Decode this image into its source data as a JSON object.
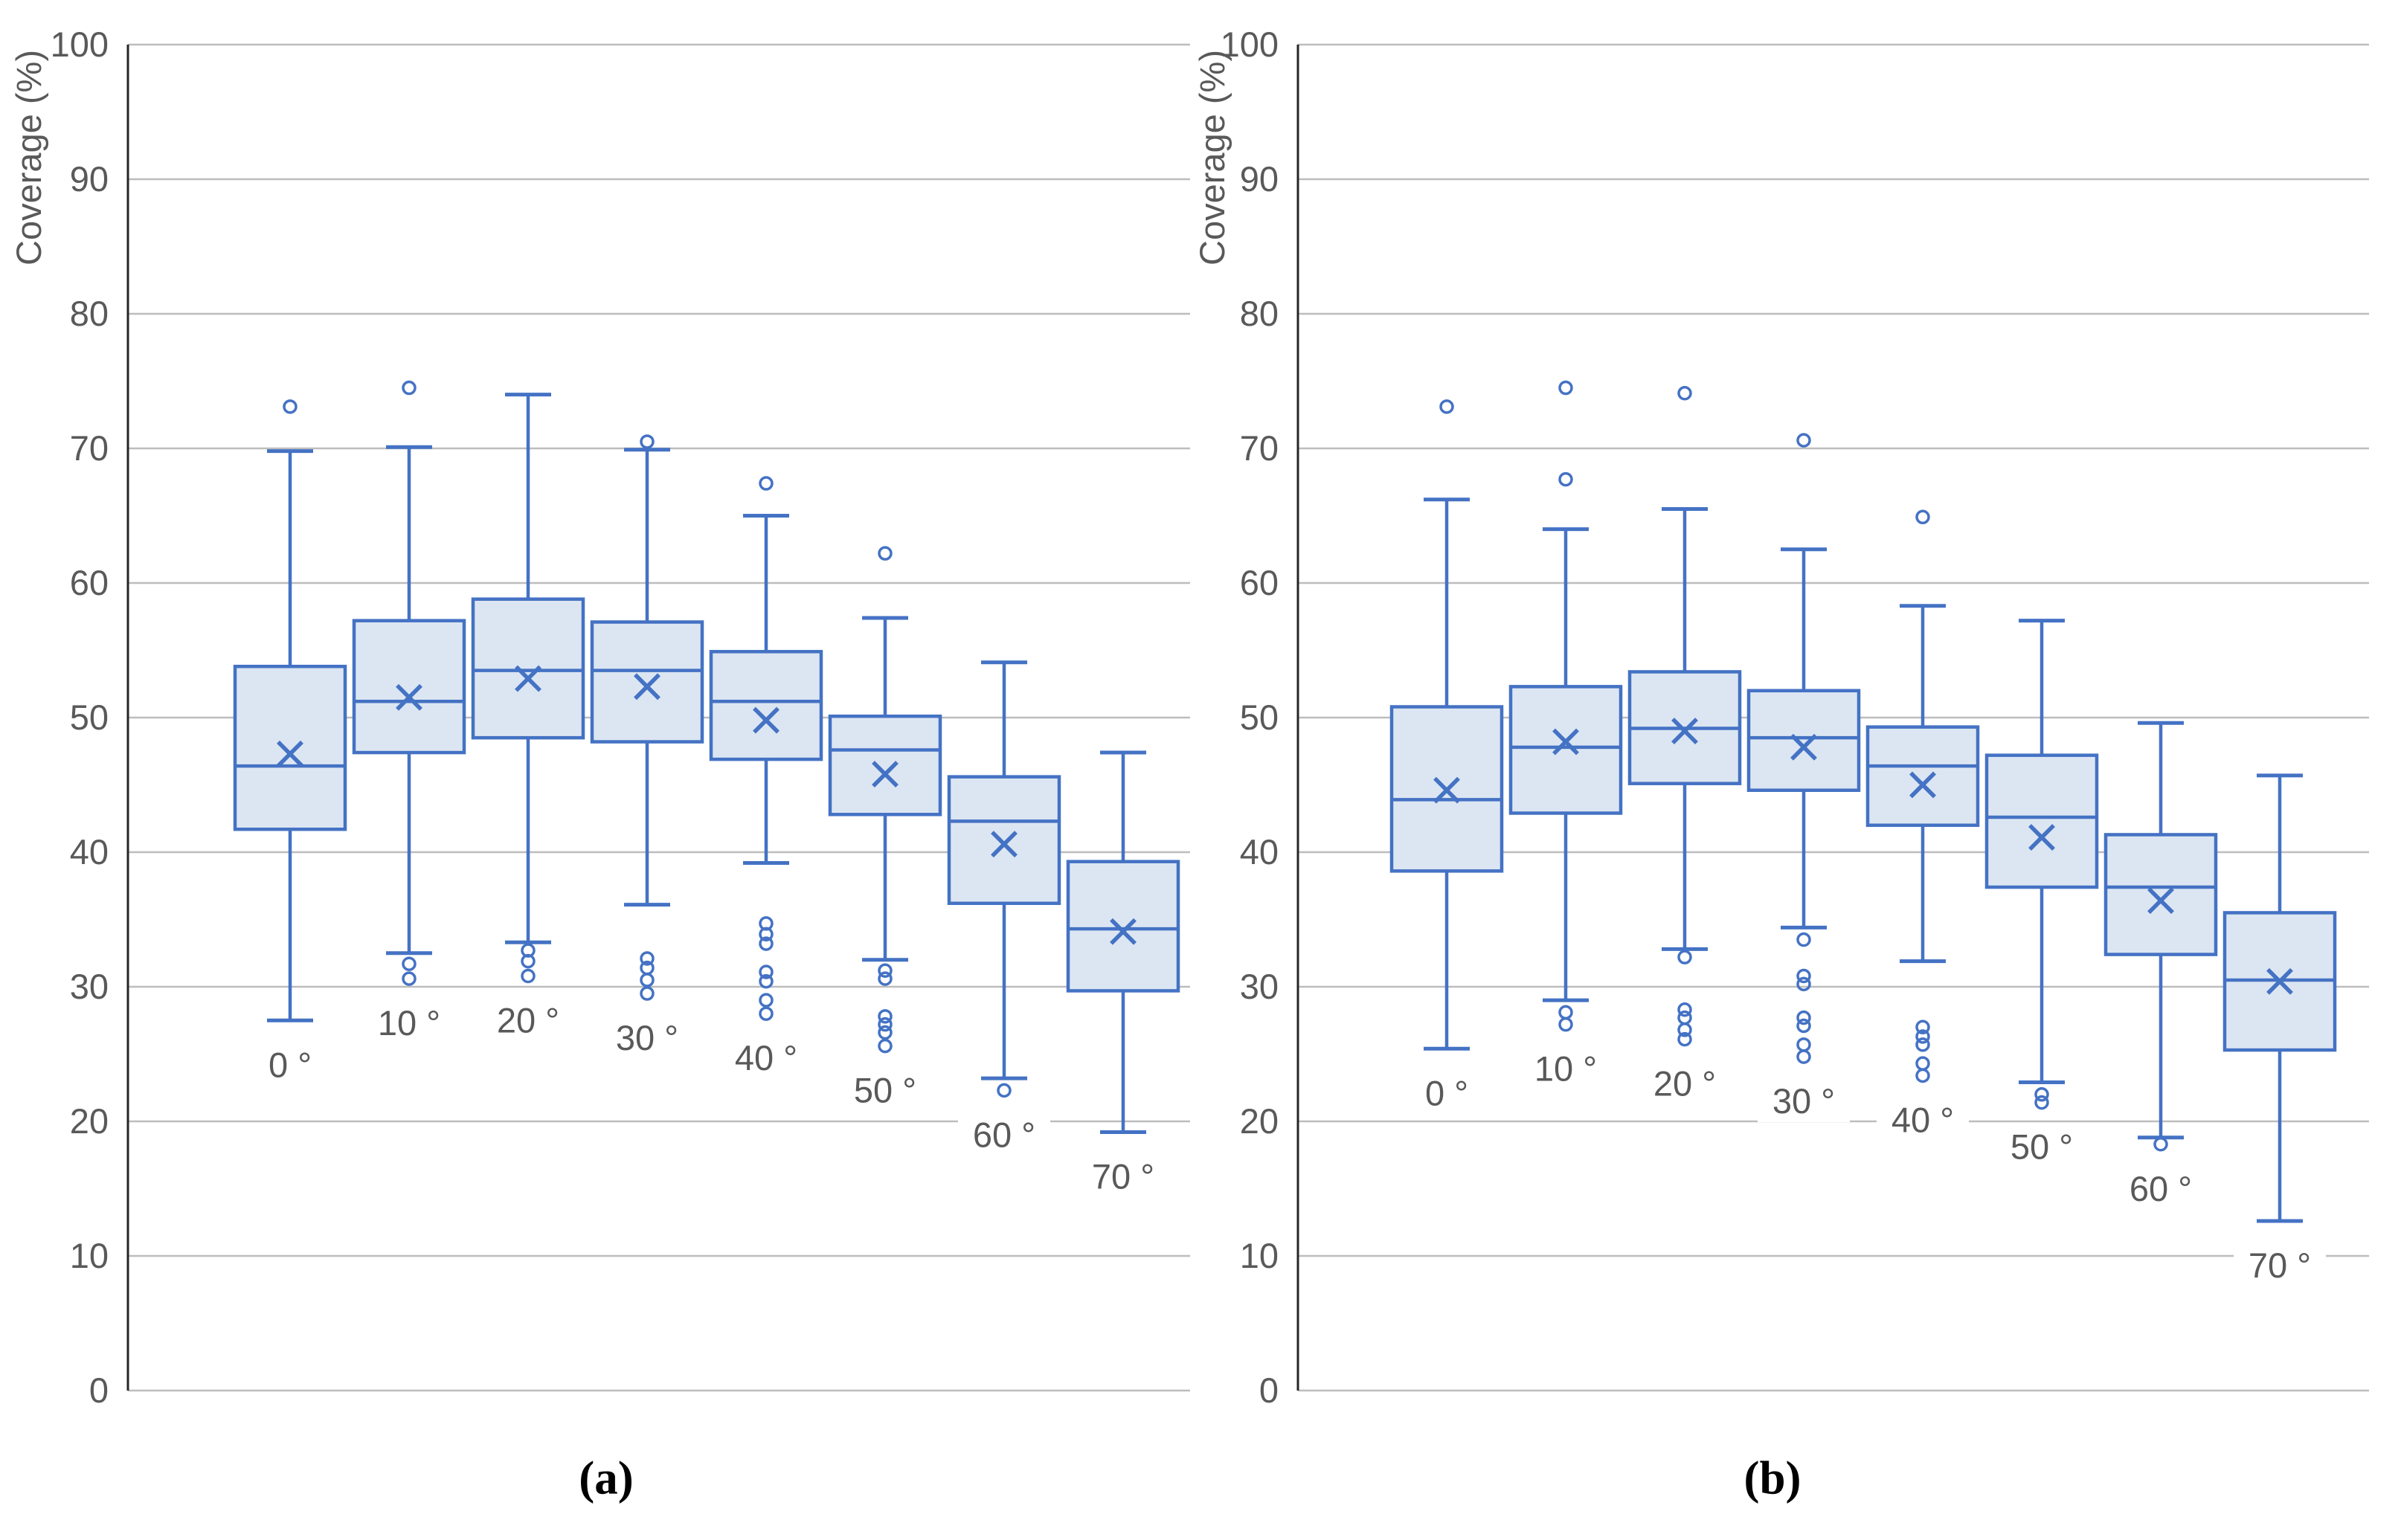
{
  "captions": {
    "a": "(a)",
    "b": "(b)"
  },
  "colors": {
    "box_fill": "#DCE6F2",
    "box_stroke": "#4472C4",
    "gridline": "#BDBDBD",
    "axis_line": "#262626",
    "tick_text": "#595959",
    "background": "#FFFFFF"
  },
  "chart_data": [
    {
      "panel": "a",
      "type": "boxplot",
      "ylabel": "Coverage (%)",
      "ylim": [
        0,
        100
      ],
      "ytick_step": 10,
      "yticks": [
        0,
        10,
        20,
        30,
        40,
        50,
        60,
        70,
        80,
        90,
        100
      ],
      "grid": "horizontal",
      "legend_position": "none",
      "categories": [
        "0 °",
        "10 °",
        "20 °",
        "30 °",
        "40 °",
        "50 °",
        "60 °",
        "70 °"
      ],
      "series": [
        {
          "label": "0 °",
          "whisker_low": 27.5,
          "q1": 41.7,
          "median": 46.4,
          "q3": 53.8,
          "whisker_high": 69.8,
          "mean": 47.3,
          "outliers_above": [
            73.1
          ],
          "outliers_below": []
        },
        {
          "label": "10 °",
          "whisker_low": 32.5,
          "q1": 47.4,
          "median": 51.2,
          "q3": 57.2,
          "whisker_high": 70.1,
          "mean": 51.5,
          "outliers_above": [
            74.5
          ],
          "outliers_below": [
            31.7,
            30.6
          ]
        },
        {
          "label": "20 °",
          "whisker_low": 33.3,
          "q1": 48.5,
          "median": 53.5,
          "q3": 58.8,
          "whisker_high": 74.0,
          "mean": 52.9,
          "outliers_above": [],
          "outliers_below": [
            32.7,
            31.9,
            30.8
          ]
        },
        {
          "label": "30 °",
          "whisker_low": 36.1,
          "q1": 48.2,
          "median": 53.5,
          "q3": 57.1,
          "whisker_high": 69.9,
          "mean": 52.3,
          "outliers_above": [
            70.5
          ],
          "outliers_below": [
            32.1,
            31.4,
            30.5,
            29.5
          ]
        },
        {
          "label": "40 °",
          "whisker_low": 39.2,
          "q1": 46.9,
          "median": 51.2,
          "q3": 54.9,
          "whisker_high": 65.0,
          "mean": 49.8,
          "outliers_above": [
            67.4
          ],
          "outliers_below": [
            34.7,
            33.9,
            33.2,
            31.1,
            30.4,
            29.0,
            28.0
          ]
        },
        {
          "label": "50 °",
          "whisker_low": 32.0,
          "q1": 42.8,
          "median": 47.6,
          "q3": 50.1,
          "whisker_high": 57.4,
          "mean": 45.8,
          "outliers_above": [
            62.2
          ],
          "outliers_below": [
            31.2,
            30.6,
            27.8,
            27.2,
            26.6,
            25.6
          ]
        },
        {
          "label": "60 °",
          "whisker_low": 23.2,
          "q1": 36.2,
          "median": 42.3,
          "q3": 45.6,
          "whisker_high": 54.1,
          "mean": 40.6,
          "outliers_above": [],
          "outliers_below": [
            22.3
          ]
        },
        {
          "label": "70 °",
          "whisker_low": 19.2,
          "q1": 29.7,
          "median": 34.3,
          "q3": 39.3,
          "whisker_high": 47.4,
          "mean": 34.1,
          "outliers_above": [],
          "outliers_below": []
        }
      ]
    },
    {
      "panel": "b",
      "type": "boxplot",
      "ylabel": "Coverage (%)",
      "ylim": [
        0,
        100
      ],
      "ytick_step": 10,
      "yticks": [
        0,
        10,
        20,
        30,
        40,
        50,
        60,
        70,
        80,
        90,
        100
      ],
      "grid": "horizontal",
      "legend_position": "none",
      "categories": [
        "0 °",
        "10 °",
        "20 °",
        "30 °",
        "40 °",
        "50 °",
        "60 °",
        "70 °"
      ],
      "series": [
        {
          "label": "0 °",
          "whisker_low": 25.4,
          "q1": 38.6,
          "median": 43.9,
          "q3": 50.8,
          "whisker_high": 66.2,
          "mean": 44.6,
          "outliers_above": [
            73.1
          ],
          "outliers_below": []
        },
        {
          "label": "10 °",
          "whisker_low": 29.0,
          "q1": 42.9,
          "median": 47.8,
          "q3": 52.3,
          "whisker_high": 64.0,
          "mean": 48.2,
          "outliers_above": [
            74.5,
            67.7
          ],
          "outliers_below": [
            28.1,
            27.2
          ]
        },
        {
          "label": "20 °",
          "whisker_low": 32.8,
          "q1": 45.1,
          "median": 49.2,
          "q3": 53.4,
          "whisker_high": 65.5,
          "mean": 49.0,
          "outliers_above": [
            74.1
          ],
          "outliers_below": [
            32.2,
            28.3,
            27.7,
            26.8,
            26.1
          ]
        },
        {
          "label": "30 °",
          "whisker_low": 34.4,
          "q1": 44.6,
          "median": 48.5,
          "q3": 52.0,
          "whisker_high": 62.5,
          "mean": 47.8,
          "outliers_above": [
            70.6
          ],
          "outliers_below": [
            33.5,
            30.8,
            30.2,
            27.7,
            27.1,
            25.7,
            24.8
          ]
        },
        {
          "label": "40 °",
          "whisker_low": 31.9,
          "q1": 42.0,
          "median": 46.4,
          "q3": 49.3,
          "whisker_high": 58.3,
          "mean": 45.0,
          "outliers_above": [
            64.9
          ],
          "outliers_below": [
            27.0,
            26.3,
            25.7,
            24.3,
            23.4
          ]
        },
        {
          "label": "50 °",
          "whisker_low": 22.9,
          "q1": 37.4,
          "median": 42.6,
          "q3": 47.2,
          "whisker_high": 57.2,
          "mean": 41.1,
          "outliers_above": [],
          "outliers_below": [
            22.0,
            21.4
          ]
        },
        {
          "label": "60 °",
          "whisker_low": 18.8,
          "q1": 32.4,
          "median": 37.4,
          "q3": 41.3,
          "whisker_high": 49.6,
          "mean": 36.4,
          "outliers_above": [],
          "outliers_below": [
            18.3
          ]
        },
        {
          "label": "70 °",
          "whisker_low": 12.6,
          "q1": 25.3,
          "median": 30.5,
          "q3": 35.5,
          "whisker_high": 45.7,
          "mean": 30.4,
          "outliers_above": [],
          "outliers_below": []
        }
      ]
    }
  ]
}
